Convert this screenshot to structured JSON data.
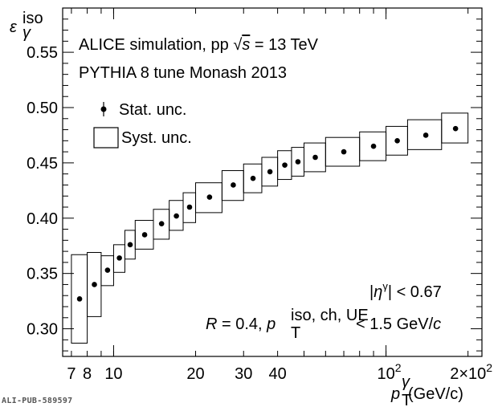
{
  "chart_data": {
    "type": "scatter",
    "title": "",
    "x_scale": "log",
    "xlim": [
      6.5,
      225
    ],
    "ylim": [
      0.275,
      0.59
    ],
    "xlabel": {
      "sym": "p",
      "sup": "γ",
      "sub": "T",
      "unit": " (GeV/c)"
    },
    "ylabel": {
      "sym": "ε",
      "sup": "iso",
      "sub": "γ"
    },
    "x_ticks": [
      {
        "value": 7,
        "label": "7"
      },
      {
        "value": 8,
        "label": "8"
      },
      {
        "value": 10,
        "label": "10"
      },
      {
        "value": 20,
        "label": "20"
      },
      {
        "value": 30,
        "label": "30"
      },
      {
        "value": 40,
        "label": "40"
      },
      {
        "value": 100,
        "label": "10",
        "sup": "2"
      },
      {
        "value": 200,
        "label": "2×10",
        "sup": "2"
      }
    ],
    "y_ticks": [
      {
        "value": 0.3,
        "label": "0.30"
      },
      {
        "value": 0.35,
        "label": "0.35"
      },
      {
        "value": 0.4,
        "label": "0.40"
      },
      {
        "value": 0.45,
        "label": "0.45"
      },
      {
        "value": 0.5,
        "label": "0.50"
      },
      {
        "value": 0.55,
        "label": "0.55"
      }
    ],
    "series": [
      {
        "name": "PYTHIA 8",
        "points": [
          {
            "x_lo": 7,
            "x_hi": 8,
            "x": 7.5,
            "y": 0.327,
            "syst_lo": 0.287,
            "syst_hi": 0.367
          },
          {
            "x_lo": 8,
            "x_hi": 9,
            "x": 8.5,
            "y": 0.34,
            "syst_lo": 0.311,
            "syst_hi": 0.369
          },
          {
            "x_lo": 9,
            "x_hi": 10,
            "x": 9.5,
            "y": 0.353,
            "syst_lo": 0.339,
            "syst_hi": 0.366
          },
          {
            "x_lo": 10,
            "x_hi": 11,
            "x": 10.5,
            "y": 0.364,
            "syst_lo": 0.351,
            "syst_hi": 0.376
          },
          {
            "x_lo": 11,
            "x_hi": 12,
            "x": 11.5,
            "y": 0.376,
            "syst_lo": 0.363,
            "syst_hi": 0.389
          },
          {
            "x_lo": 12,
            "x_hi": 14,
            "x": 13,
            "y": 0.385,
            "syst_lo": 0.372,
            "syst_hi": 0.398
          },
          {
            "x_lo": 14,
            "x_hi": 16,
            "x": 15,
            "y": 0.395,
            "syst_lo": 0.381,
            "syst_hi": 0.408
          },
          {
            "x_lo": 16,
            "x_hi": 18,
            "x": 17,
            "y": 0.402,
            "syst_lo": 0.389,
            "syst_hi": 0.416
          },
          {
            "x_lo": 18,
            "x_hi": 20,
            "x": 19,
            "y": 0.41,
            "syst_lo": 0.396,
            "syst_hi": 0.423
          },
          {
            "x_lo": 20,
            "x_hi": 25,
            "x": 22.5,
            "y": 0.419,
            "syst_lo": 0.405,
            "syst_hi": 0.432
          },
          {
            "x_lo": 25,
            "x_hi": 30,
            "x": 27.5,
            "y": 0.43,
            "syst_lo": 0.416,
            "syst_hi": 0.443
          },
          {
            "x_lo": 30,
            "x_hi": 35,
            "x": 32.5,
            "y": 0.436,
            "syst_lo": 0.423,
            "syst_hi": 0.449
          },
          {
            "x_lo": 35,
            "x_hi": 40,
            "x": 37.5,
            "y": 0.442,
            "syst_lo": 0.429,
            "syst_hi": 0.455
          },
          {
            "x_lo": 40,
            "x_hi": 45,
            "x": 42.5,
            "y": 0.448,
            "syst_lo": 0.435,
            "syst_hi": 0.461
          },
          {
            "x_lo": 45,
            "x_hi": 50,
            "x": 47.5,
            "y": 0.451,
            "syst_lo": 0.438,
            "syst_hi": 0.464
          },
          {
            "x_lo": 50,
            "x_hi": 60,
            "x": 55,
            "y": 0.455,
            "syst_lo": 0.442,
            "syst_hi": 0.468
          },
          {
            "x_lo": 60,
            "x_hi": 80,
            "x": 70,
            "y": 0.46,
            "syst_lo": 0.447,
            "syst_hi": 0.473
          },
          {
            "x_lo": 80,
            "x_hi": 100,
            "x": 90,
            "y": 0.465,
            "syst_lo": 0.452,
            "syst_hi": 0.478
          },
          {
            "x_lo": 100,
            "x_hi": 120,
            "x": 110,
            "y": 0.47,
            "syst_lo": 0.457,
            "syst_hi": 0.483
          },
          {
            "x_lo": 120,
            "x_hi": 160,
            "x": 140,
            "y": 0.475,
            "syst_lo": 0.462,
            "syst_hi": 0.489
          },
          {
            "x_lo": 160,
            "x_hi": 200,
            "x": 180,
            "y": 0.481,
            "syst_lo": 0.468,
            "syst_hi": 0.495
          }
        ]
      }
    ],
    "annotations": {
      "line1": "ALICE simulation, pp ",
      "sqrt": "√",
      "s": "s",
      "line1_tail": " = 13 TeV",
      "line2": "PYTHIA 8 tune Monash 2013",
      "eta_open": "|",
      "eta_sym": "η",
      "eta_sup": "γ",
      "eta_tail": "| < 0.67",
      "cut_R": "R",
      "cut_mid": " = 0.4, ",
      "cut_p": "p",
      "cut_sup": "iso, ch, UE",
      "cut_sub": "T",
      "cut_tail": " < 1.5 GeV/",
      "cut_c": "c"
    },
    "legend": {
      "position": "top-left",
      "stat_label": "Stat. unc.",
      "syst_label": "Syst. unc."
    }
  },
  "credit": "ALI-PUB-589597"
}
